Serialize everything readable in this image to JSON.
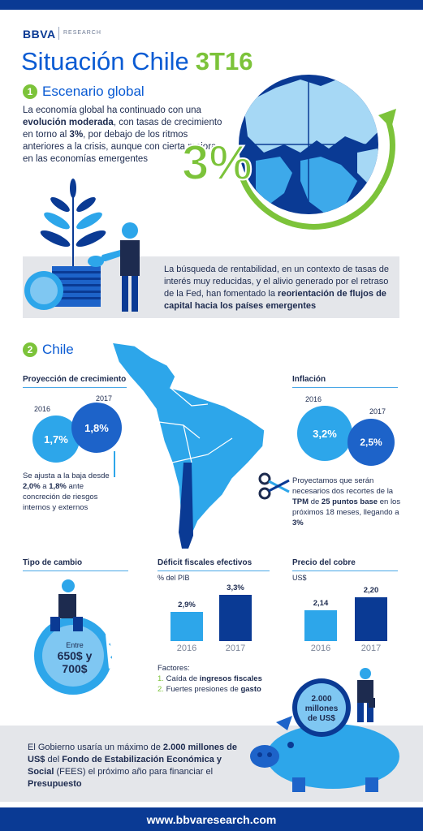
{
  "header": {
    "logo_text": "BBVA",
    "logo_sub": "RESEARCH",
    "title": "Situación Chile",
    "title_highlight": "3T16"
  },
  "section1": {
    "number": "1",
    "title": "Escenario global",
    "text_parts": [
      {
        "t": "La economía global ha continuado con una ",
        "b": false
      },
      {
        "t": "evolución moderada",
        "b": true
      },
      {
        "t": ", con tasas de crecimiento en torno al ",
        "b": false
      },
      {
        "t": "3%",
        "b": true
      },
      {
        "t": ", por debajo de los ritmos anteriores a la crisis, aunque con cierta mejora en las economías emergentes",
        "b": false
      }
    ],
    "globe_value": "3%",
    "box_parts": [
      {
        "t": "La búsqueda de rentabilidad, en un contexto de tasas de interés muy reducidas, y el alivio generado por el retraso de la Fed, han fomentado la ",
        "b": false
      },
      {
        "t": "reorientación de flujos de capital hacia los países emergentes",
        "b": true
      }
    ]
  },
  "section2": {
    "number": "2",
    "title": "Chile",
    "growth": {
      "heading": "Proyección de crecimiento",
      "year_a": "2016",
      "value_a": "1,7%",
      "year_b": "2017",
      "value_b": "1,8%",
      "note_parts": [
        {
          "t": "Se ajusta a la baja desde ",
          "b": false
        },
        {
          "t": "2,0%",
          "b": true
        },
        {
          "t": " a ",
          "b": false
        },
        {
          "t": "1,8%",
          "b": true
        },
        {
          "t": " ante concreción de riesgos internos y externos",
          "b": false
        }
      ]
    },
    "inflation": {
      "heading": "Inflación",
      "year_a": "2016",
      "value_a": "3,2%",
      "year_b": "2017",
      "value_b": "2,5%"
    },
    "rates_note_parts": [
      {
        "t": "Proyectamos que serán necesarios dos recortes de la ",
        "b": false
      },
      {
        "t": "TPM",
        "b": true
      },
      {
        "t": " de ",
        "b": false
      },
      {
        "t": "25 puntos base",
        "b": true
      },
      {
        "t": " en los próximos 18 meses, llegando a ",
        "b": false
      },
      {
        "t": "3%",
        "b": true
      }
    ],
    "exchange": {
      "heading": "Tipo de cambio",
      "line1": "Entre",
      "line2": "650$ y",
      "line3": "700$"
    },
    "deficit": {
      "heading": "Déficit fiscales efectivos",
      "unit": "% del PIB",
      "factors_title": "Factores:",
      "factor1_num": "1.",
      "factor1_parts": [
        {
          "t": "Caída de ",
          "b": false
        },
        {
          "t": "ingresos fiscales",
          "b": true
        }
      ],
      "factor2_num": "2.",
      "factor2_parts": [
        {
          "t": "Fuertes presiones de ",
          "b": false
        },
        {
          "t": "gasto",
          "b": true
        }
      ]
    },
    "copper": {
      "heading": "Precio del cobre",
      "unit": "US$"
    }
  },
  "chart_data": [
    {
      "type": "bar",
      "categories": [
        "2016",
        "2017"
      ],
      "values": [
        2.9,
        3.3
      ],
      "labels": [
        "2,9%",
        "3,3%"
      ],
      "ylabel": "% del PIB",
      "ylim": [
        2.2,
        3.4
      ]
    },
    {
      "type": "bar",
      "categories": [
        "2016",
        "2017"
      ],
      "values": [
        2.14,
        2.2
      ],
      "labels": [
        "2,14",
        "2,20"
      ],
      "ylabel": "US$",
      "ylim": [
        2.0,
        2.23
      ]
    }
  ],
  "bottom": {
    "coin_line1": "2.000",
    "coin_line2": "millones",
    "coin_line3": "de US$",
    "text_parts": [
      {
        "t": "El Gobierno usaría un máximo de ",
        "b": false
      },
      {
        "t": "2.000 millones de US$",
        "b": true
      },
      {
        "t": " del ",
        "b": false
      },
      {
        "t": "Fondo de Estabilización Económica y Social",
        "b": true
      },
      {
        "t": " (FEES) el próximo año para financiar el ",
        "b": false
      },
      {
        "t": "Presupuesto",
        "b": true
      }
    ]
  },
  "footer": {
    "url": "www.bbvaresearch.com"
  },
  "colors": {
    "brand_blue": "#0a3a94",
    "accent_blue": "#0a5bd3",
    "light_blue": "#2da6ea",
    "green": "#7cc33a",
    "gray_box": "#e4e6ea"
  }
}
